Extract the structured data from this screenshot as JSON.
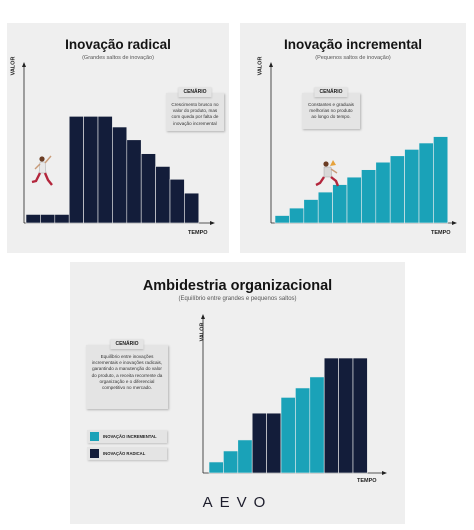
{
  "colors": {
    "navy": "#131d3a",
    "teal": "#1aa2b8",
    "panel_bg": "#efefef"
  },
  "panel_radical": {
    "title": "Inovação radical",
    "subtitle": "(Grandes saltos de inovação)",
    "ylabel": "VALOR",
    "xlabel": "TEMPO",
    "scenario_title": "CENÁRIO",
    "scenario_text": "Crescimento brusco no valor do produto, mas com queda por falta de inovação incremental",
    "figure_icon": "person-jumping-icon"
  },
  "panel_incremental": {
    "title": "Inovação incremental",
    "subtitle": "(Pequenos saltos de inovação)",
    "ylabel": "VALOR",
    "xlabel": "TEMPO",
    "scenario_title": "CENÁRIO",
    "scenario_text": "Constantes e graduais melhorias no produto ao longo do tempo.",
    "figure_icon": "person-climbing-icon"
  },
  "panel_ambidextria": {
    "title": "Ambidestria organizacional",
    "subtitle": "(Equilíbrio entre grandes e pequenos saltos)",
    "ylabel": "VALOR",
    "xlabel": "TEMPO",
    "scenario_title": "CENÁRIO",
    "scenario_text": "Equilíbrio entre inovações incrementais e inovações radicais, garantindo a manutenção do valor do produto, a receita recorrente da organização e o diferencial competitivo no mercado.",
    "legend": [
      {
        "label": "INOVAÇÃO INCREMENTAL",
        "color": "#1aa2b8"
      },
      {
        "label": "INOVAÇÃO RADICAL",
        "color": "#131d3a"
      }
    ]
  },
  "logo": "AEVO",
  "chart_data": [
    {
      "type": "bar",
      "values": [
        0.8,
        0.8,
        0.8,
        10,
        10,
        10,
        9,
        7.8,
        6.5,
        5.3,
        4.1,
        2.8
      ],
      "kinds": [
        "radical",
        "radical",
        "radical",
        "radical",
        "radical",
        "radical",
        "radical",
        "radical",
        "radical",
        "radical",
        "radical",
        "radical"
      ],
      "ylim": [
        0,
        10.5
      ]
    },
    {
      "type": "bar",
      "values": [
        0.7,
        1.4,
        2.2,
        2.9,
        3.6,
        4.3,
        5.0,
        5.7,
        6.3,
        6.9,
        7.5,
        8.1
      ],
      "kinds": [
        "incremental",
        "incremental",
        "incremental",
        "incremental",
        "incremental",
        "incremental",
        "incremental",
        "incremental",
        "incremental",
        "incremental",
        "incremental",
        "incremental"
      ],
      "ylim": [
        0,
        10.5
      ]
    },
    {
      "type": "bar",
      "values": [
        0.7,
        1.4,
        2.1,
        3.8,
        3.8,
        4.8,
        5.4,
        6.1,
        7.3,
        7.3,
        7.3
      ],
      "kinds": [
        "incremental",
        "incremental",
        "incremental",
        "radical",
        "radical",
        "incremental",
        "incremental",
        "incremental",
        "radical",
        "radical",
        "radical"
      ],
      "ylim": [
        0,
        8
      ]
    }
  ]
}
